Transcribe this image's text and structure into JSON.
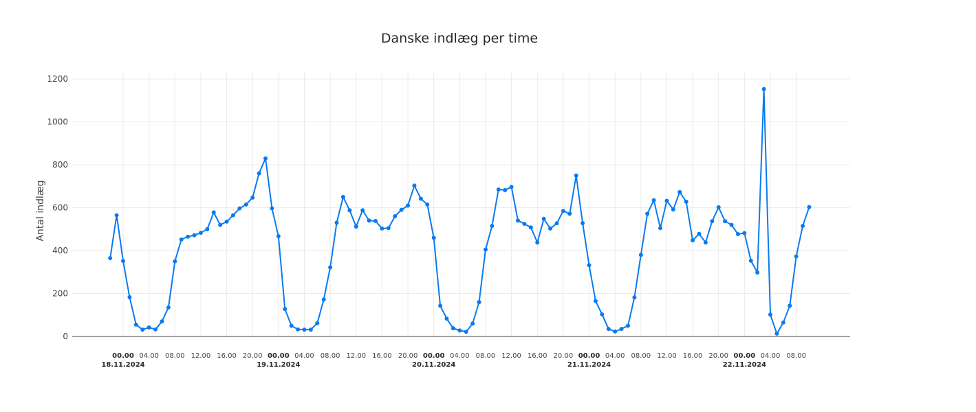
{
  "chart_data": {
    "type": "line",
    "title": "Danske indlæg per time",
    "ylabel": "Antal indlæg",
    "xlabel": "",
    "ylim": [
      0,
      1200
    ],
    "yticks": [
      0,
      200,
      400,
      600,
      800,
      1000,
      1200
    ],
    "x_axis_ticks": [
      {
        "hour": 0,
        "label": "00.00",
        "date": "18.11.2024"
      },
      {
        "hour": 4,
        "label": "04.00"
      },
      {
        "hour": 8,
        "label": "08.00"
      },
      {
        "hour": 12,
        "label": "12.00"
      },
      {
        "hour": 16,
        "label": "16.00"
      },
      {
        "hour": 20,
        "label": "20.00"
      },
      {
        "hour": 24,
        "label": "00.00",
        "date": "19.11.2024"
      },
      {
        "hour": 28,
        "label": "04.00"
      },
      {
        "hour": 32,
        "label": "08.00"
      },
      {
        "hour": 36,
        "label": "12.00"
      },
      {
        "hour": 40,
        "label": "16.00"
      },
      {
        "hour": 44,
        "label": "20.00"
      },
      {
        "hour": 48,
        "label": "00.00",
        "date": "20.11.2024"
      },
      {
        "hour": 52,
        "label": "04.00"
      },
      {
        "hour": 56,
        "label": "08.00"
      },
      {
        "hour": 60,
        "label": "12.00"
      },
      {
        "hour": 64,
        "label": "16.00"
      },
      {
        "hour": 68,
        "label": "20.00"
      },
      {
        "hour": 72,
        "label": "00.00",
        "date": "21.11.2024"
      },
      {
        "hour": 76,
        "label": "04.00"
      },
      {
        "hour": 80,
        "label": "08.00"
      },
      {
        "hour": 84,
        "label": "12.00"
      },
      {
        "hour": 88,
        "label": "16.00"
      },
      {
        "hour": 92,
        "label": "20.00"
      },
      {
        "hour": 96,
        "label": "00.00",
        "date": "22.11.2024"
      },
      {
        "hour": 100,
        "label": "04.00"
      },
      {
        "hour": 104,
        "label": "08.00"
      }
    ],
    "grid": true,
    "x_start": -2,
    "series": [
      {
        "name": "",
        "color": "#0a7aef",
        "values": [
          365,
          565,
          352,
          183,
          55,
          32,
          42,
          33,
          70,
          135,
          350,
          452,
          465,
          472,
          483,
          500,
          578,
          520,
          535,
          565,
          597,
          615,
          647,
          760,
          830,
          597,
          467,
          128,
          50,
          33,
          32,
          32,
          62,
          172,
          322,
          530,
          650,
          588,
          512,
          588,
          540,
          538,
          503,
          505,
          560,
          590,
          610,
          703,
          642,
          615,
          460,
          143,
          83,
          38,
          28,
          22,
          60,
          160,
          405,
          515,
          685,
          682,
          697,
          540,
          525,
          508,
          438,
          548,
          503,
          527,
          585,
          572,
          750,
          528,
          332,
          165,
          103,
          35,
          23,
          35,
          50,
          182,
          380,
          572,
          635,
          505,
          632,
          592,
          673,
          628,
          448,
          478,
          438,
          537,
          602,
          537,
          520,
          477,
          482,
          353,
          298,
          1153,
          102,
          13,
          65,
          143,
          373,
          515,
          603
        ]
      }
    ]
  }
}
